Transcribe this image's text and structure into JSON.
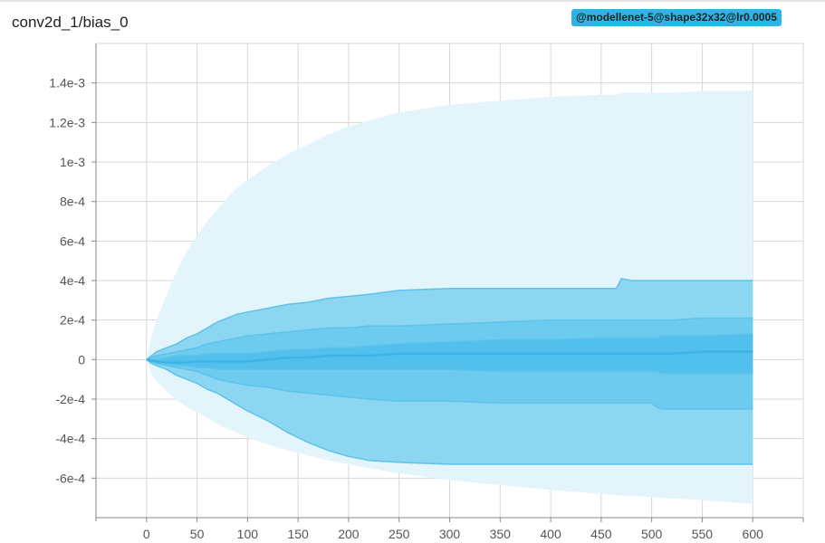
{
  "title": "conv2d_1/bias_0",
  "run_tag": {
    "label": "@modellenet-5@shape32x32@lr0.0005",
    "color": "#29b6e6"
  },
  "chart_data": {
    "type": "area",
    "title": "conv2d_1/bias_0",
    "xlabel": "",
    "ylabel": "",
    "xlim": [
      -50,
      650
    ],
    "ylim": [
      -0.0008,
      0.0016
    ],
    "x_ticks": [
      0,
      50,
      100,
      150,
      200,
      250,
      300,
      350,
      400,
      450,
      500,
      550,
      600
    ],
    "x_tick_labels": [
      "0",
      "50",
      "100",
      "150",
      "200",
      "250",
      "300",
      "350",
      "400",
      "450",
      "500",
      "550",
      "600"
    ],
    "y_ticks": [
      -0.0006,
      -0.0004,
      -0.0002,
      0,
      0.0002,
      0.0004,
      0.0006,
      0.0008,
      0.001,
      0.0012,
      0.0014
    ],
    "y_tick_labels": [
      "-6e-4",
      "-4e-4",
      "-2e-4",
      "0",
      "2e-4",
      "4e-4",
      "6e-4",
      "8e-4",
      "1e-3",
      "1.2e-3",
      "1.4e-3"
    ],
    "grid": true,
    "colors": {
      "outer_band": "#e3f4fb",
      "band_1": "#8dd6f1",
      "band_2": "#6dcbef",
      "band_3": "#52c0ec",
      "median": "#3db4e6"
    },
    "x": [
      0,
      5,
      10,
      20,
      30,
      40,
      50,
      60,
      70,
      80,
      90,
      100,
      120,
      140,
      160,
      180,
      200,
      220,
      250,
      300,
      350,
      400,
      450,
      465,
      470,
      480,
      500,
      505,
      510,
      520,
      550,
      600
    ],
    "series": [
      {
        "values": [
          0,
          -7.5e-05,
          -0.00011,
          -0.00016,
          -0.000205,
          -0.00024,
          -0.00027,
          -0.000295,
          -0.000325,
          -0.00035,
          -0.00037,
          -0.000395,
          -0.00043,
          -0.00046,
          -0.000485,
          -0.00051,
          -0.00053,
          -0.00055,
          -0.000575,
          -0.00061,
          -0.000635,
          -0.00066,
          -0.00068,
          -0.000685,
          -0.000688,
          -0.00069,
          -0.000695,
          -0.000697,
          -0.0007,
          -0.000703,
          -0.000712,
          -0.00073
        ]
      },
      {
        "values": [
          0,
          -2e-05,
          -3e-05,
          -5e-05,
          -8e-05,
          -0.0001,
          -0.00012,
          -0.00015,
          -0.00017,
          -0.0002,
          -0.00023,
          -0.00026,
          -0.00031,
          -0.00037,
          -0.00042,
          -0.00046,
          -0.00049,
          -0.00051,
          -0.00052,
          -0.00053,
          -0.00053,
          -0.00053,
          -0.00053,
          -0.00053,
          -0.00053,
          -0.00053,
          -0.00053,
          -0.00053,
          -0.00053,
          -0.00053,
          -0.00053,
          -0.00053
        ]
      },
      {
        "values": [
          0,
          -1e-05,
          -2e-05,
          -3e-05,
          -4e-05,
          -5e-05,
          -6e-05,
          -8e-05,
          -0.0001,
          -0.00011,
          -0.00012,
          -0.00013,
          -0.00014,
          -0.00016,
          -0.00017,
          -0.00018,
          -0.00019,
          -0.0002,
          -0.00021,
          -0.00021,
          -0.00022,
          -0.00022,
          -0.00022,
          -0.00022,
          -0.00022,
          -0.00022,
          -0.00022,
          -0.00024,
          -0.00025,
          -0.00025,
          -0.00025,
          -0.00025
        ]
      },
      {
        "values": [
          0,
          -1e-05,
          -1.5e-05,
          -2e-05,
          -3e-05,
          -3e-05,
          -4e-05,
          -4e-05,
          -5e-05,
          -5e-05,
          -5e-05,
          -5e-05,
          -5e-05,
          -5e-05,
          -5e-05,
          -5e-05,
          -5e-05,
          -5e-05,
          -5e-05,
          -5e-05,
          -6e-05,
          -6e-05,
          -6e-05,
          -6e-05,
          -6e-05,
          -6e-05,
          -6e-05,
          -6e-05,
          -7e-05,
          -7e-05,
          -7e-05,
          -7e-05
        ]
      },
      {
        "values": [
          0,
          -5e-06,
          -1e-05,
          -1.5e-05,
          -1.5e-05,
          -1.5e-05,
          -1e-05,
          -1e-05,
          -1e-05,
          -1e-05,
          -1e-05,
          -1e-05,
          0,
          1e-05,
          1e-05,
          2e-05,
          2e-05,
          2e-05,
          3e-05,
          3e-05,
          3e-05,
          3e-05,
          3e-05,
          3e-05,
          3e-05,
          3e-05,
          3e-05,
          3e-05,
          3e-05,
          3e-05,
          4e-05,
          4e-05
        ]
      },
      {
        "values": [
          0,
          0,
          0,
          1e-05,
          2e-05,
          2e-05,
          2e-05,
          3e-05,
          3e-05,
          3e-05,
          3e-05,
          3e-05,
          4e-05,
          5e-05,
          5e-05,
          6e-05,
          6e-05,
          7e-05,
          8e-05,
          9e-05,
          0.0001,
          0.0001,
          0.00011,
          0.00011,
          0.00011,
          0.00011,
          0.00011,
          0.00011,
          0.00012,
          0.00012,
          0.00012,
          0.00013
        ]
      },
      {
        "values": [
          0,
          1e-05,
          2e-05,
          3e-05,
          4e-05,
          5e-05,
          6e-05,
          8e-05,
          9e-05,
          0.0001,
          0.00011,
          0.00012,
          0.00013,
          0.00014,
          0.00015,
          0.00016,
          0.00016,
          0.00017,
          0.00017,
          0.00018,
          0.00019,
          0.0002,
          0.0002,
          0.0002,
          0.0002,
          0.0002,
          0.0002,
          0.0002,
          0.0002,
          0.0002,
          0.00021,
          0.00021
        ]
      },
      {
        "values": [
          0,
          2e-05,
          4e-05,
          6e-05,
          8e-05,
          0.00011,
          0.00013,
          0.00016,
          0.00019,
          0.00021,
          0.00023,
          0.00024,
          0.00026,
          0.00028,
          0.00029,
          0.00031,
          0.00032,
          0.00033,
          0.00035,
          0.00036,
          0.00036,
          0.00036,
          0.00036,
          0.00036,
          0.00041,
          0.0004,
          0.0004,
          0.0004,
          0.0004,
          0.0004,
          0.0004,
          0.0004
        ]
      },
      {
        "values": [
          0,
          0.00012,
          0.0002,
          0.00033,
          0.00045,
          0.00055,
          0.00063,
          0.0007,
          0.00076,
          0.00082,
          0.00087,
          0.00091,
          0.00098,
          0.00104,
          0.00109,
          0.00114,
          0.00118,
          0.00121,
          0.00125,
          0.00129,
          0.00131,
          0.00133,
          0.00134,
          0.00134,
          0.00135,
          0.00135,
          0.00135,
          0.00135,
          0.00135,
          0.00135,
          0.00136,
          0.00136
        ]
      }
    ]
  }
}
